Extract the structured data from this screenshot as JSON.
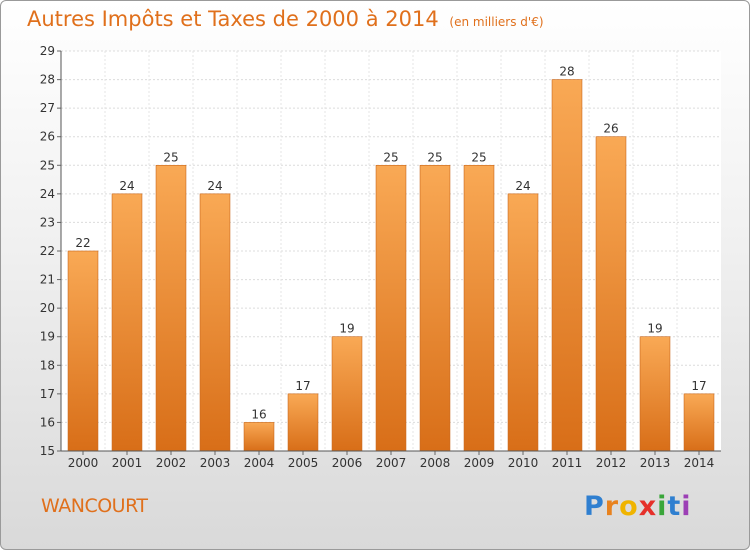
{
  "header": {
    "title": "Autres Impôts et Taxes de 2000 à 2014",
    "unit": "(en milliers d'€)"
  },
  "footer": {
    "commune": "WANCOURT",
    "logo": {
      "letters": [
        "P",
        "r",
        "o",
        "x",
        "i",
        "t",
        "i"
      ],
      "colors": [
        "#2f7fd0",
        "#e8821e",
        "#f0b400",
        "#e5302a",
        "#3aa63a",
        "#2f7fd0",
        "#9c3fb5"
      ]
    }
  },
  "colors": {
    "accent": "#e0701c",
    "bar_top": "#f9a955",
    "bar_bottom": "#d86e18"
  },
  "chart_data": {
    "type": "bar",
    "title": "Autres Impôts et Taxes de 2000 à 2014",
    "unit": "(en milliers d'€)",
    "categories": [
      "2000",
      "2001",
      "2002",
      "2003",
      "2004",
      "2005",
      "2006",
      "2007",
      "2008",
      "2009",
      "2010",
      "2011",
      "2012",
      "2013",
      "2014"
    ],
    "values": [
      22,
      24,
      25,
      24,
      16,
      17,
      19,
      25,
      25,
      25,
      24,
      28,
      26,
      19,
      17
    ],
    "ylim": [
      15,
      29
    ],
    "yticks": [
      "15",
      "16",
      "17",
      "18",
      "19",
      "20",
      "21",
      "22",
      "23",
      "24",
      "25",
      "26",
      "27",
      "28",
      "29"
    ],
    "grid": true,
    "data_labels": true,
    "xlabel": "",
    "ylabel": ""
  }
}
